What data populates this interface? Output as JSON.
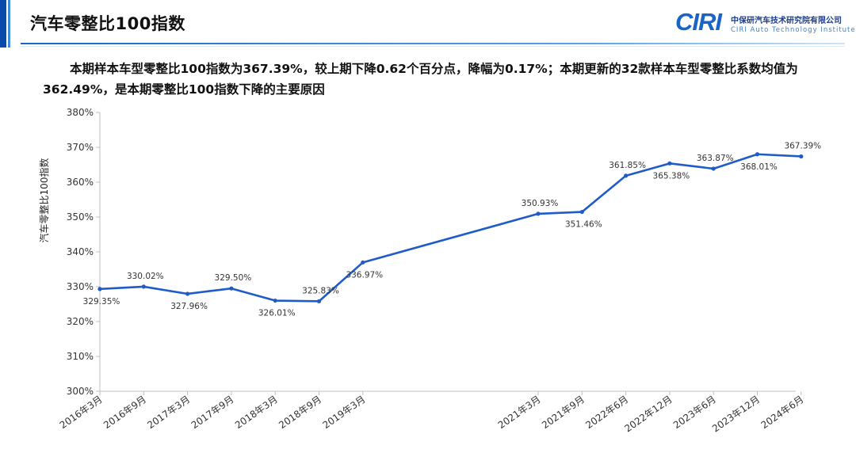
{
  "header": {
    "title": "汽车零整比100指数",
    "logo_mark": "CIRI",
    "logo_cn": "中保研汽车技术研究院有限公司",
    "logo_en": "CIRI Auto Technology Institute"
  },
  "summary": "本期样本车型零整比100指数为367.39%，较上期下降0.62个百分点，降幅为0.17%；本期更新的32款样本车型零整比系数均值为362.49%，是本期零整比100指数下降的主要原因",
  "colors": {
    "line": "#1f5bc9",
    "accent": "#0a4aa8"
  },
  "chart_data": {
    "type": "line",
    "ylabel": "汽车零整比100指数",
    "ylim": [
      300,
      380
    ],
    "yticks": [
      "300%",
      "310%",
      "320%",
      "330%",
      "340%",
      "350%",
      "360%",
      "370%",
      "380%"
    ],
    "x_axis_note": "time-proportional; gap between 2019年3月 and 2021年3月",
    "categories": [
      "2016年3月",
      "2016年9月",
      "2017年3月",
      "2017年9月",
      "2018年3月",
      "2018年9月",
      "2019年3月",
      "2021年3月",
      "2021年9月",
      "2022年6月",
      "2022年12月",
      "2023年6月",
      "2023年12月",
      "2024年6月"
    ],
    "x_index": [
      0,
      1,
      2,
      3,
      4,
      5,
      6,
      10,
      11,
      12,
      13,
      14,
      15,
      16
    ],
    "values": [
      329.35,
      330.02,
      327.96,
      329.5,
      326.01,
      325.83,
      336.97,
      350.93,
      351.46,
      361.85,
      365.38,
      363.87,
      368.01,
      367.39
    ],
    "labels": [
      "329.35%",
      "330.02%",
      "327.96%",
      "329.50%",
      "326.01%",
      "325.83%",
      "336.97%",
      "350.93%",
      "351.46%",
      "361.85%",
      "365.38%",
      "363.87%",
      "368.01%",
      "367.39%"
    ],
    "label_position": [
      "below",
      "above",
      "below",
      "above",
      "below",
      "above",
      "below",
      "above",
      "below",
      "above",
      "below",
      "above",
      "below",
      "above"
    ],
    "grid": false,
    "legend": "none"
  }
}
